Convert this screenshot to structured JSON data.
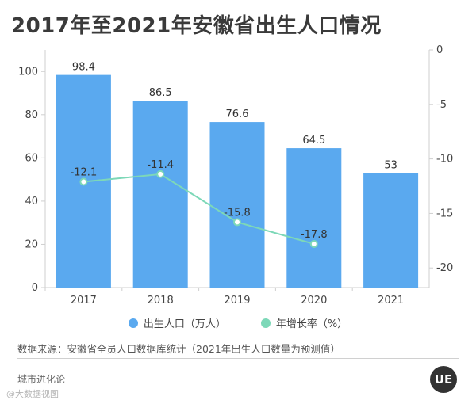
{
  "title": "2017年至2021年安徽省出生人口情况",
  "colors": {
    "bar": "#5aa9ef",
    "line": "#7dd8b8",
    "title": "#3a3a3a"
  },
  "chart_data": {
    "type": "bar",
    "categories": [
      "2017",
      "2018",
      "2019",
      "2020",
      "2021"
    ],
    "series": [
      {
        "name": "出生人口（万人）",
        "type": "bar",
        "axis": "left",
        "values": [
          98.4,
          86.5,
          76.6,
          64.5,
          53
        ]
      },
      {
        "name": "年增长率（%）",
        "type": "line",
        "axis": "right",
        "values": [
          -12.1,
          -11.4,
          -15.8,
          -17.8,
          null
        ]
      }
    ],
    "y_left": {
      "min": 0,
      "max": 110,
      "ticks": [
        0,
        20,
        40,
        60,
        80,
        100
      ]
    },
    "y_right": {
      "min": -21.8,
      "max": 0,
      "ticks": [
        0,
        -5,
        -10,
        -15,
        -20
      ]
    },
    "grid": false,
    "legend_position": "bottom"
  },
  "legend": {
    "births": "出生人口（万人）",
    "growth": "年增长率（%）"
  },
  "source": "数据来源：安徽省全员人口数据库统计（2021年出生人口数量为预测值）",
  "footer": {
    "brand": "城市进化论",
    "watermark": "@大数据视图",
    "logo": "UE"
  }
}
